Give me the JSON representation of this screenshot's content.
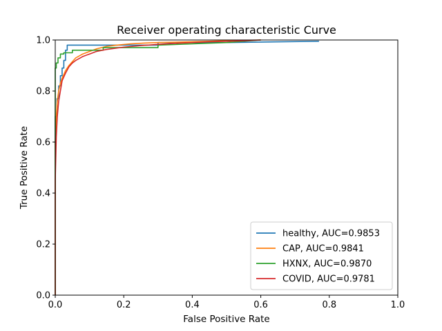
{
  "chart_data": {
    "type": "line",
    "title": "Receiver operating characteristic Curve",
    "xlabel": "False Positive Rate",
    "ylabel": "True Positive Rate",
    "xlim": [
      0,
      1
    ],
    "ylim": [
      0,
      1
    ],
    "xticks": [
      "0.0",
      "0.2",
      "0.4",
      "0.6",
      "0.8",
      "1.0"
    ],
    "yticks": [
      "0.0",
      "0.2",
      "0.4",
      "0.6",
      "0.8",
      "1.0"
    ],
    "grid": false,
    "legend_position": "lower-right",
    "series": [
      {
        "name": "healthy, AUC=0.9853",
        "color": "#1f77b4",
        "x": [
          0,
          0,
          0.005,
          0.005,
          0.01,
          0.01,
          0.015,
          0.015,
          0.02,
          0.02,
          0.025,
          0.025,
          0.03,
          0.03,
          0.035,
          0.035,
          0.14,
          0.14,
          0.18,
          0.3,
          0.3,
          0.5,
          0.77
        ],
        "y": [
          0,
          0.7,
          0.7,
          0.77,
          0.77,
          0.82,
          0.82,
          0.86,
          0.86,
          0.89,
          0.89,
          0.92,
          0.92,
          0.96,
          0.96,
          0.98,
          0.98,
          0.98,
          0.98,
          0.98,
          0.99,
          0.99,
          0.995
        ]
      },
      {
        "name": "CAP, AUC=0.9841",
        "color": "#ff7f0e",
        "x": [
          0,
          0,
          0.003,
          0.006,
          0.01,
          0.015,
          0.02,
          0.03,
          0.04,
          0.05,
          0.06,
          0.08,
          0.1,
          0.12,
          0.15,
          0.18,
          0.22,
          0.26,
          0.3,
          0.4,
          0.5,
          0.6
        ],
        "y": [
          0,
          0.6,
          0.7,
          0.76,
          0.8,
          0.83,
          0.85,
          0.88,
          0.9,
          0.915,
          0.93,
          0.945,
          0.955,
          0.965,
          0.975,
          0.98,
          0.985,
          0.988,
          0.99,
          0.993,
          0.997,
          1.0
        ]
      },
      {
        "name": "HXNX, AUC=0.9870",
        "color": "#2ca02c",
        "x": [
          0,
          0,
          0.003,
          0.003,
          0.008,
          0.008,
          0.015,
          0.015,
          0.025,
          0.025,
          0.05,
          0.05,
          0.14,
          0.14,
          0.3,
          0.3,
          0.5,
          0.6
        ],
        "y": [
          0,
          0.89,
          0.89,
          0.91,
          0.91,
          0.93,
          0.93,
          0.945,
          0.945,
          0.95,
          0.95,
          0.96,
          0.96,
          0.97,
          0.97,
          0.98,
          0.99,
          1.0
        ]
      },
      {
        "name": "COVID, AUC=0.9781",
        "color": "#d62728",
        "x": [
          0,
          0,
          0.003,
          0.006,
          0.01,
          0.015,
          0.02,
          0.03,
          0.04,
          0.05,
          0.06,
          0.08,
          0.1,
          0.12,
          0.15,
          0.2,
          0.25,
          0.3,
          0.35,
          0.4,
          0.45,
          0.55,
          0.6
        ],
        "y": [
          0,
          0.45,
          0.62,
          0.7,
          0.76,
          0.8,
          0.84,
          0.87,
          0.895,
          0.91,
          0.92,
          0.935,
          0.945,
          0.955,
          0.963,
          0.972,
          0.978,
          0.983,
          0.987,
          0.99,
          0.993,
          0.997,
          1.0
        ]
      }
    ]
  }
}
